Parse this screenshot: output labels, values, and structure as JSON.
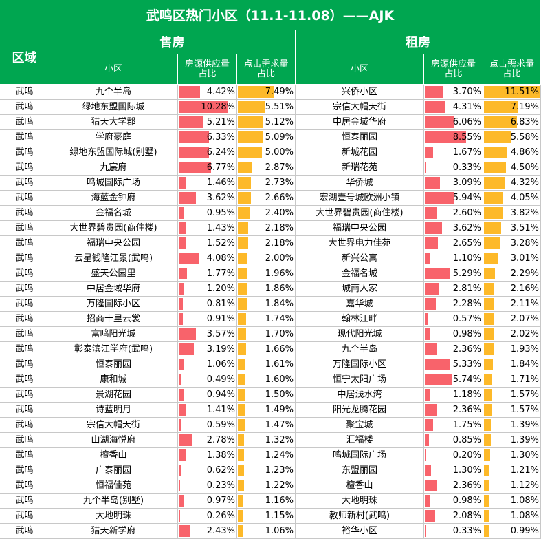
{
  "title": "武鸣区热门小区（11.1-11.08）——AJK",
  "headers": {
    "region": "区域",
    "sale": "售房",
    "rent": "租房",
    "community": "小区",
    "supply": "房源供应量占比",
    "demand": "点击需求量占比"
  },
  "colors": {
    "header": "#00a650",
    "supply_bar": "#f8636b",
    "demand_bar": "#fdb929"
  },
  "chart_data": {
    "type": "table",
    "region_values": [
      "武鸣",
      "武鸣",
      "武鸣",
      "武鸣",
      "武鸣",
      "武鸣",
      "武鸣",
      "武鸣",
      "武鸣",
      "武鸣",
      "武鸣",
      "武鸣",
      "武鸣",
      "武鸣",
      "武鸣",
      "武鸣",
      "武鸣",
      "武鸣",
      "武鸣",
      "武鸣",
      "武鸣",
      "武鸣",
      "武鸣",
      "武鸣",
      "武鸣",
      "武鸣",
      "武鸣",
      "武鸣",
      "武鸣",
      "武鸣"
    ],
    "sale": {
      "communities": [
        "九个半岛",
        "绿地东盟国际城",
        "猎天大学郡",
        "学府豪庭",
        "绿地东盟国际城(别墅)",
        "九宸府",
        "鸣城国际广场",
        "海蓝金钟府",
        "金福名城",
        "大世界碧贵园(商住楼)",
        "福瑞中央公园",
        "云星钱隆江景(武鸣)",
        "盛天公园里",
        "中居金域华府",
        "万隆国际小区",
        "招商十里云裳",
        "富鸣阳光城",
        "彰泰滨江学府(武鸣)",
        "恒泰丽园",
        "康和城",
        "景湖花园",
        "诗蓝明月",
        "宗信大帽天街",
        "山湖海悦府",
        "檀香山",
        "广泰丽园",
        "恒福佳苑",
        "九个半岛(别墅)",
        "大地明珠",
        "猎天新学府"
      ],
      "supply_labels": [
        "4.42%",
        "10.28%",
        "5.21%",
        "6.33%",
        "6.24%",
        "6.77%",
        "1.46%",
        "3.62%",
        "0.95%",
        "1.43%",
        "1.52%",
        "4.08%",
        "1.77%",
        "1.20%",
        "0.81%",
        "0.91%",
        "3.57%",
        "3.19%",
        "1.06%",
        "0.49%",
        "0.94%",
        "1.41%",
        "0.59%",
        "2.78%",
        "1.38%",
        "0.62%",
        "0.23%",
        "0.97%",
        "0.26%",
        "2.43%"
      ],
      "supply_values": [
        4.42,
        10.28,
        5.21,
        6.33,
        6.24,
        6.77,
        1.46,
        3.62,
        0.95,
        1.43,
        1.52,
        4.08,
        1.77,
        1.2,
        0.81,
        0.91,
        3.57,
        3.19,
        1.06,
        0.49,
        0.94,
        1.41,
        0.59,
        2.78,
        1.38,
        0.62,
        0.23,
        0.97,
        0.26,
        2.43
      ],
      "demand_labels": [
        "7.49%",
        "5.51%",
        "5.12%",
        "5.09%",
        "5.00%",
        "2.87%",
        "2.73%",
        "2.66%",
        "2.40%",
        "2.18%",
        "2.18%",
        "2.00%",
        "1.96%",
        "1.86%",
        "1.84%",
        "1.74%",
        "1.70%",
        "1.66%",
        "1.61%",
        "1.60%",
        "1.50%",
        "1.49%",
        "1.47%",
        "1.32%",
        "1.24%",
        "1.23%",
        "1.22%",
        "1.16%",
        "1.15%",
        "1.06%"
      ],
      "demand_values": [
        7.49,
        5.51,
        5.12,
        5.09,
        5.0,
        2.87,
        2.73,
        2.66,
        2.4,
        2.18,
        2.18,
        2.0,
        1.96,
        1.86,
        1.84,
        1.74,
        1.7,
        1.66,
        1.61,
        1.6,
        1.5,
        1.49,
        1.47,
        1.32,
        1.24,
        1.23,
        1.22,
        1.16,
        1.15,
        1.06
      ]
    },
    "rent": {
      "communities": [
        "兴侨小区",
        "宗信大帽天街",
        "中居金域华府",
        "恒泰丽园",
        "新城花园",
        "新瑞花苑",
        "华侨城",
        "宏湖壹号城欧洲小镇",
        "大世界碧贵园(商住楼)",
        "福瑞中央公园",
        "大世界电力佳苑",
        "新兴公寓",
        "金福名城",
        "城南人家",
        "嘉华城",
        "翰林江畔",
        "现代阳光城",
        "九个半岛",
        "万隆国际小区",
        "恒宁太阳广场",
        "中居浅水湾",
        "阳光龙腾花园",
        "聚宝城",
        "汇福楼",
        "鸣城国际广场",
        "东盟丽园",
        "檀香山",
        "大地明珠",
        "教师新村(武鸣)",
        "裕华小区"
      ],
      "supply_labels": [
        "3.70%",
        "4.31%",
        "6.06%",
        "8.55%",
        "1.67%",
        "0.33%",
        "3.09%",
        "5.94%",
        "2.60%",
        "3.62%",
        "2.65%",
        "1.10%",
        "5.29%",
        "2.81%",
        "2.28%",
        "0.57%",
        "0.98%",
        "2.36%",
        "5.33%",
        "5.74%",
        "1.18%",
        "2.36%",
        "1.75%",
        "0.85%",
        "0.20%",
        "1.30%",
        "2.36%",
        "0.98%",
        "2.08%",
        "0.33%"
      ],
      "supply_values": [
        3.7,
        4.31,
        6.06,
        8.55,
        1.67,
        0.33,
        3.09,
        5.94,
        2.6,
        3.62,
        2.65,
        1.1,
        5.29,
        2.81,
        2.28,
        0.57,
        0.98,
        2.36,
        5.33,
        5.74,
        1.18,
        2.36,
        1.75,
        0.85,
        0.2,
        1.3,
        2.36,
        0.98,
        2.08,
        0.33
      ],
      "demand_labels": [
        "11.51%",
        "7.19%",
        "6.83%",
        "5.58%",
        "4.86%",
        "4.50%",
        "4.32%",
        "4.05%",
        "3.82%",
        "3.51%",
        "3.28%",
        "3.01%",
        "2.29%",
        "2.16%",
        "2.11%",
        "2.07%",
        "2.02%",
        "1.93%",
        "1.84%",
        "1.71%",
        "1.57%",
        "1.57%",
        "1.39%",
        "1.39%",
        "1.30%",
        "1.21%",
        "1.12%",
        "1.08%",
        "1.08%",
        "0.99%"
      ],
      "demand_values": [
        11.51,
        7.19,
        6.83,
        5.58,
        4.86,
        4.5,
        4.32,
        4.05,
        3.82,
        3.51,
        3.28,
        3.01,
        2.29,
        2.16,
        2.11,
        2.07,
        2.02,
        1.93,
        1.84,
        1.71,
        1.57,
        1.57,
        1.39,
        1.39,
        1.3,
        1.21,
        1.12,
        1.08,
        1.08,
        0.99
      ]
    }
  }
}
